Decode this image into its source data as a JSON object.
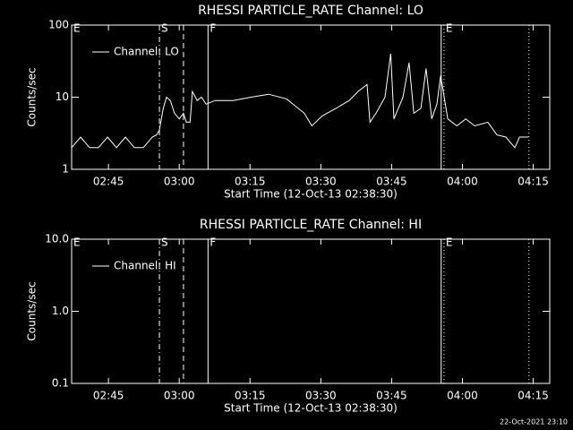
{
  "chart_data": [
    {
      "type": "line",
      "title": "RHESSI PARTICLE_RATE Channel: LO",
      "x_label": "Start Time (12-Oct-13 02:38:30)",
      "y_label": "Counts/sec",
      "xlim": [
        157.2,
        258.5
      ],
      "xticks": [
        {
          "value": 165,
          "label": "02:45"
        },
        {
          "value": 180,
          "label": "03:00"
        },
        {
          "value": 195,
          "label": "03:15"
        },
        {
          "value": 210,
          "label": "03:30"
        },
        {
          "value": 225,
          "label": "03:45"
        },
        {
          "value": 240,
          "label": "04:00"
        },
        {
          "value": 255,
          "label": "04:15"
        }
      ],
      "ylim": [
        1,
        100
      ],
      "yticks": [
        1,
        10,
        100
      ],
      "ylog": true,
      "legend": "upper left",
      "vlines": [
        {
          "x": 175.8,
          "style": "dashdot"
        },
        {
          "x": 180.9,
          "style": "dashed"
        },
        {
          "x": 186.1,
          "style": "solid"
        },
        {
          "x": 235.5,
          "style": "solid"
        },
        {
          "x": 236.1,
          "style": "dotted"
        },
        {
          "x": 254.1,
          "style": "dotted"
        }
      ],
      "marker_labels": [
        {
          "text": "E",
          "x": 157.2
        },
        {
          "text": "S",
          "x": 175.8
        },
        {
          "text": "F",
          "x": 186.1
        },
        {
          "text": "E",
          "x": 236.1
        }
      ],
      "x": [
        157.2,
        159.1,
        161.0,
        162.9,
        164.8,
        166.7,
        168.6,
        170.5,
        172.4,
        174.3,
        175.2,
        175.8,
        176.6,
        177.3,
        178.1,
        179.0,
        180.0,
        180.9,
        181.5,
        182.3,
        182.8,
        183.8,
        184.7,
        185.7,
        187.6,
        191.4,
        195.2,
        198.9,
        202.7,
        206.5,
        208.1,
        210.3,
        213.2,
        216.0,
        217.9,
        219.8,
        220.4,
        221.7,
        223.6,
        224.8,
        225.5,
        227.4,
        228.7,
        229.7,
        231.2,
        232.3,
        233.5,
        234.6,
        235.4,
        236.9,
        238.8,
        240.7,
        242.6,
        245.4,
        247.3,
        249.2,
        251.1,
        252.1,
        254.0
      ],
      "series": [
        {
          "name": "Channel: LO",
          "color": "#ffffff",
          "values": [
            2,
            2.8,
            2,
            2,
            2.8,
            2,
            2.8,
            2,
            2,
            2.8,
            3,
            3.5,
            7,
            10,
            9,
            6,
            5,
            6,
            4.5,
            4.5,
            12,
            9,
            10,
            8,
            9,
            9,
            10,
            11,
            9.5,
            6,
            4,
            5.5,
            7,
            9,
            12,
            15,
            4.5,
            6,
            10,
            40,
            5,
            10,
            30,
            6,
            7,
            25,
            5,
            8,
            20,
            5,
            4,
            5,
            4,
            4.5,
            3,
            2.8,
            2,
            2.8,
            2.8
          ]
        }
      ]
    },
    {
      "type": "line",
      "title": "RHESSI PARTICLE_RATE Channel: HI",
      "x_label": "Start Time (12-Oct-13 02:38:30)",
      "y_label": "Counts/sec",
      "xlim": [
        157.2,
        258.5
      ],
      "xticks": [
        {
          "value": 165,
          "label": "02:45"
        },
        {
          "value": 180,
          "label": "03:00"
        },
        {
          "value": 195,
          "label": "03:15"
        },
        {
          "value": 210,
          "label": "03:30"
        },
        {
          "value": 225,
          "label": "03:45"
        },
        {
          "value": 240,
          "label": "04:00"
        },
        {
          "value": 255,
          "label": "04:15"
        }
      ],
      "ylim": [
        0.1,
        10
      ],
      "yticks": [
        0.1,
        {
          "value": 1,
          "label": "1.0"
        },
        {
          "value": 10,
          "label": "10.0"
        }
      ],
      "ylog": true,
      "legend": "upper left",
      "vlines": [
        {
          "x": 175.8,
          "style": "dashdot"
        },
        {
          "x": 180.9,
          "style": "dashed"
        },
        {
          "x": 186.1,
          "style": "solid"
        },
        {
          "x": 235.5,
          "style": "solid"
        },
        {
          "x": 236.1,
          "style": "dotted"
        },
        {
          "x": 254.1,
          "style": "dotted"
        }
      ],
      "marker_labels": [
        {
          "text": "E",
          "x": 157.2
        },
        {
          "text": "S",
          "x": 175.8
        },
        {
          "text": "F",
          "x": 186.1
        },
        {
          "text": "E",
          "x": 236.1
        }
      ],
      "x": [],
      "series": [
        {
          "name": "Channel: HI",
          "color": "#ffffff",
          "values": []
        }
      ]
    }
  ],
  "footer": "22-Oct-2021 23:10"
}
